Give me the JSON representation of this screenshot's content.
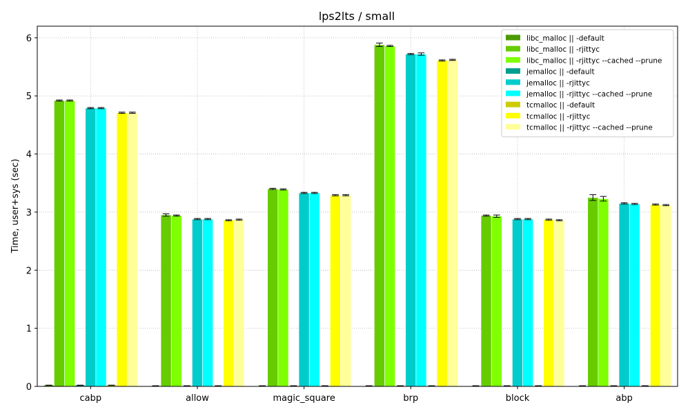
{
  "chart_data": {
    "type": "bar",
    "title": "lps2lts / small",
    "xlabel": "",
    "ylabel": "Time, user+sys (sec)",
    "ylim": [
      0,
      6.2
    ],
    "yticks": [
      0,
      1,
      2,
      3,
      4,
      5,
      6
    ],
    "grid": true,
    "legend_position": "top-right",
    "error_bars": true,
    "categories": [
      "cabp",
      "allow",
      "magic_square",
      "brp",
      "block",
      "abp"
    ],
    "series": [
      {
        "name": "libc_malloc || -default",
        "color": "#4c9a00",
        "values": [
          0.02,
          0.01,
          0.01,
          0.01,
          0.01,
          0.01
        ],
        "errors": [
          0,
          0,
          0,
          0,
          0,
          0
        ]
      },
      {
        "name": "libc_malloc || -rjittyc",
        "color": "#66cc00",
        "values": [
          4.92,
          2.95,
          3.4,
          5.88,
          2.94,
          3.25
        ],
        "errors": [
          0.01,
          0.02,
          0.01,
          0.03,
          0.01,
          0.05
        ]
      },
      {
        "name": "libc_malloc || -rjittyc --cached --prune",
        "color": "#7fff00",
        "values": [
          4.92,
          2.94,
          3.39,
          5.86,
          2.93,
          3.23
        ],
        "errors": [
          0.01,
          0.01,
          0.01,
          0.01,
          0.02,
          0.04
        ]
      },
      {
        "name": "jemalloc || -default",
        "color": "#009e8e",
        "values": [
          0.02,
          0.01,
          0.01,
          0.01,
          0.01,
          0.01
        ],
        "errors": [
          0,
          0,
          0,
          0,
          0,
          0
        ]
      },
      {
        "name": "jemalloc || -rjittyc",
        "color": "#00cccc",
        "values": [
          4.79,
          2.88,
          3.33,
          5.72,
          2.88,
          3.15
        ],
        "errors": [
          0.01,
          0.01,
          0.01,
          0.01,
          0.01,
          0.01
        ]
      },
      {
        "name": "jemalloc || -rjittyc --cached --prune",
        "color": "#00ffff",
        "values": [
          4.79,
          2.88,
          3.33,
          5.72,
          2.88,
          3.14
        ],
        "errors": [
          0.01,
          0.01,
          0.01,
          0.02,
          0.01,
          0.01
        ]
      },
      {
        "name": "tcmalloc || -default",
        "color": "#cccc00",
        "values": [
          0.02,
          0.01,
          0.01,
          0.01,
          0.01,
          0.01
        ],
        "errors": [
          0,
          0,
          0,
          0,
          0,
          0
        ]
      },
      {
        "name": "tcmalloc || -rjittyc",
        "color": "#ffff00",
        "values": [
          4.71,
          2.86,
          3.29,
          5.61,
          2.87,
          3.13
        ],
        "errors": [
          0.01,
          0.01,
          0.01,
          0.01,
          0.01,
          0.01
        ]
      },
      {
        "name": "tcmalloc || -rjittyc --cached --prune",
        "color": "#ffff99",
        "values": [
          4.71,
          2.87,
          3.29,
          5.62,
          2.86,
          3.12
        ],
        "errors": [
          0.01,
          0.01,
          0.01,
          0.01,
          0.01,
          0.01
        ]
      }
    ]
  }
}
